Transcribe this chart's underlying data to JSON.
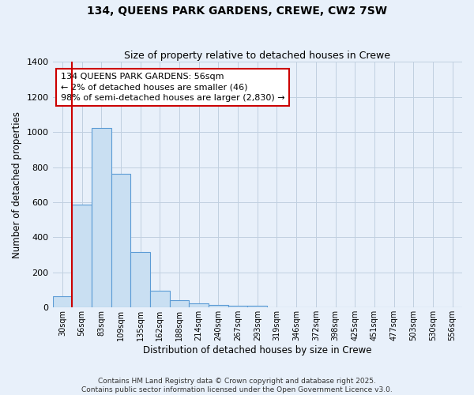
{
  "title": "134, QUEENS PARK GARDENS, CREWE, CW2 7SW",
  "subtitle": "Size of property relative to detached houses in Crewe",
  "xlabel": "Distribution of detached houses by size in Crewe",
  "ylabel": "Number of detached properties",
  "bins": [
    "30sqm",
    "56sqm",
    "83sqm",
    "109sqm",
    "135sqm",
    "162sqm",
    "188sqm",
    "214sqm",
    "240sqm",
    "267sqm",
    "293sqm",
    "319sqm",
    "346sqm",
    "372sqm",
    "398sqm",
    "425sqm",
    "451sqm",
    "477sqm",
    "503sqm",
    "530sqm",
    "556sqm"
  ],
  "values": [
    65,
    585,
    1025,
    760,
    315,
    95,
    42,
    22,
    13,
    9,
    12,
    0,
    0,
    0,
    0,
    0,
    0,
    0,
    0,
    0,
    0
  ],
  "bar_color": "#c9dff2",
  "bar_edge_color": "#5b9bd5",
  "highlight_bar_index": 1,
  "vline_color": "#cc0000",
  "ylim": [
    0,
    1400
  ],
  "yticks": [
    0,
    200,
    400,
    600,
    800,
    1000,
    1200,
    1400
  ],
  "annotation_text": "134 QUEENS PARK GARDENS: 56sqm\n← 2% of detached houses are smaller (46)\n98% of semi-detached houses are larger (2,830) →",
  "annotation_box_facecolor": "white",
  "annotation_box_edgecolor": "#cc0000",
  "footer_text": "Contains HM Land Registry data © Crown copyright and database right 2025.\nContains public sector information licensed under the Open Government Licence v3.0.",
  "background_color": "#e8f0fa",
  "grid_color": "#c0cfe0"
}
